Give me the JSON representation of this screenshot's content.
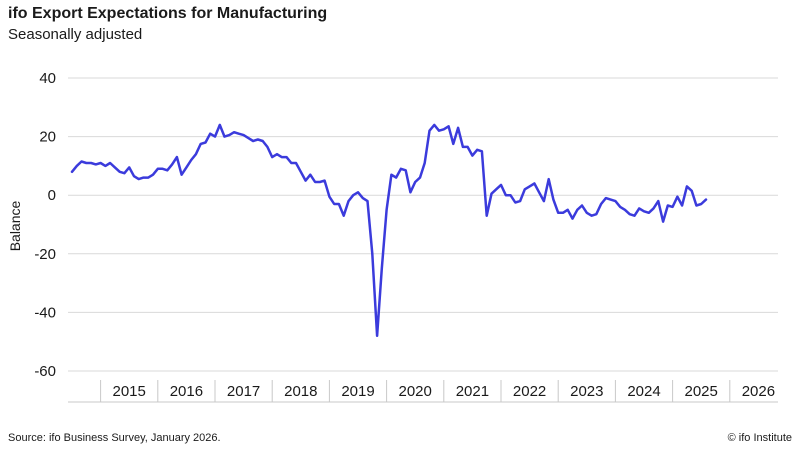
{
  "header": {
    "title": "ifo Export Expectations for Manufacturing",
    "subtitle": "Seasonally adjusted"
  },
  "footer": {
    "source": "Source: ifo Business Survey, January 2026.",
    "copyright": "© ifo Institute"
  },
  "chart_data": {
    "type": "line",
    "title": "ifo Export Expectations for Manufacturing",
    "subtitle": "Seasonally adjusted",
    "ylabel": "Balance",
    "xlabel": "",
    "ylim": [
      -60,
      40
    ],
    "yticks": [
      40,
      20,
      0,
      -20,
      -40,
      -60
    ],
    "xlim": [
      2014.5,
      2026.75
    ],
    "xticks": [
      "2015",
      "2016",
      "2017",
      "2018",
      "2019",
      "2020",
      "2021",
      "2022",
      "2023",
      "2024",
      "2025",
      "2026"
    ],
    "grid": "horizontal",
    "line_color": "#3b3bdc",
    "start": "2014-07",
    "end": "2026-01",
    "frequency": "monthly",
    "series": [
      {
        "values": [
          8,
          10,
          11.5,
          11,
          11,
          10.5,
          11,
          10,
          11,
          9.5,
          8,
          7.5,
          9.5,
          6.5,
          5.5,
          6,
          6,
          7,
          9,
          9,
          8.5,
          10.5,
          13,
          7,
          9.5,
          12,
          14,
          17.5,
          18,
          21,
          20,
          24,
          20,
          20.5,
          21.5,
          21,
          20.5,
          19.5,
          18.5,
          19,
          18.5,
          16.5,
          13,
          14,
          13,
          13,
          11,
          11,
          8,
          5,
          7,
          4.5,
          4.5,
          5,
          -0.5,
          -3,
          -3,
          -7,
          -2,
          0,
          1,
          -1,
          -2,
          -20,
          -48,
          -25,
          -5,
          7,
          6,
          9,
          8.5,
          1,
          4.5,
          6,
          11,
          22,
          24,
          22,
          22.5,
          23.5,
          17.5,
          23,
          16.5,
          16.5,
          13.5,
          15.5,
          15,
          -7,
          0.5,
          2,
          3.5,
          0,
          0,
          -2.5,
          -2,
          2,
          3,
          4,
          1,
          -2,
          5.5,
          -1.5,
          -6,
          -6,
          -5,
          -8,
          -5,
          -3.5,
          -6,
          -7,
          -6.5,
          -3,
          -1,
          -1.5,
          -2,
          -4,
          -5,
          -6.5,
          -7,
          -4.5,
          -5.5,
          -6,
          -4.5,
          -2,
          -9,
          -3.5,
          -4,
          -0.5,
          -3.5,
          3,
          1.5,
          -3.5,
          -3,
          -1.5
        ]
      }
    ]
  }
}
